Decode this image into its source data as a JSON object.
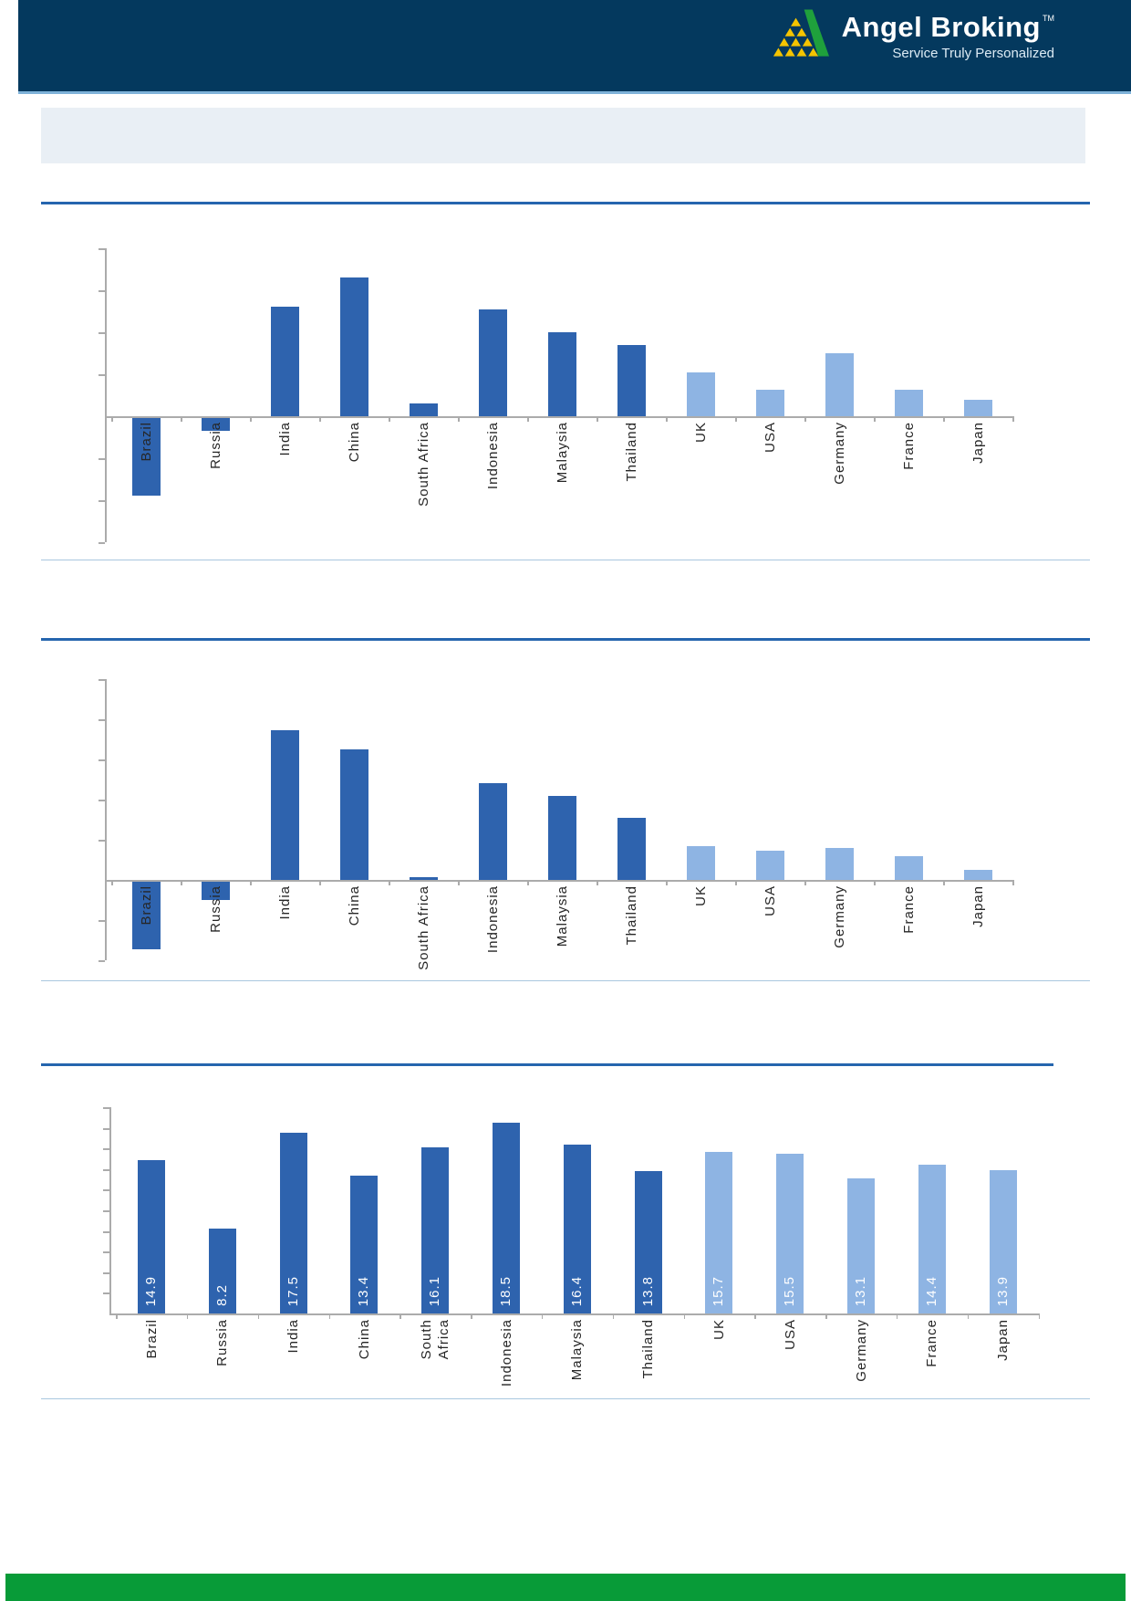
{
  "header": {
    "brand": "Angel Broking",
    "brand_tm": "TM",
    "tagline": "Service Truly Personalized"
  },
  "colors": {
    "header_bg": "#04395E",
    "header_underline": "#7FB2D9",
    "banner_bg": "#E9EFF5",
    "section_rule": "#2565AE",
    "chart_bottom_border": "#A9C7DF",
    "bar_dark": "#2E63AE",
    "bar_light": "#8EB4E3",
    "axis": "#ABABAB",
    "label_text": "#262626",
    "value_label_text": "#FFFFFF",
    "footer_bg": "#089B38"
  },
  "chart_data": [
    {
      "id": "chart1",
      "type": "bar",
      "title": "",
      "axis_note": "no axis value labels visible; values estimated in gridline units",
      "legend": "none",
      "grid": "off",
      "categories": [
        "Brazil",
        "Russia",
        "India",
        "China",
        "South Africa",
        "Indonesia",
        "Malaysia",
        "Thailand",
        "UK",
        "USA",
        "Germany",
        "France",
        "Japan"
      ],
      "values": [
        -1.85,
        -0.3,
        2.6,
        3.3,
        0.3,
        2.55,
        2.0,
        1.7,
        1.05,
        0.62,
        1.5,
        0.62,
        0.4
      ],
      "shade": [
        "dark",
        "dark",
        "dark",
        "dark",
        "dark",
        "dark",
        "dark",
        "dark",
        "light",
        "light",
        "light",
        "light",
        "light"
      ],
      "value_labels": null,
      "ylim_gridline_units": [
        -3,
        4
      ]
    },
    {
      "id": "chart2",
      "type": "bar",
      "title": "",
      "axis_note": "no axis value labels visible; values estimated in gridline units",
      "legend": "none",
      "grid": "off",
      "categories": [
        "Brazil",
        "Russia",
        "India",
        "China",
        "South Africa",
        "Indonesia",
        "Malaysia",
        "Thailand",
        "UK",
        "USA",
        "Germany",
        "France",
        "Japan"
      ],
      "values": [
        -1.68,
        -0.45,
        3.73,
        3.25,
        0.07,
        2.4,
        2.1,
        1.55,
        0.85,
        0.73,
        0.8,
        0.6,
        0.25
      ],
      "shade": [
        "dark",
        "dark",
        "dark",
        "dark",
        "dark",
        "dark",
        "dark",
        "dark",
        "light",
        "light",
        "light",
        "light",
        "light"
      ],
      "value_labels": null,
      "ylim_gridline_units": [
        -2,
        5
      ]
    },
    {
      "id": "chart3",
      "type": "bar",
      "title": "",
      "axis_note": "axis unlabeled; bars carry data labels",
      "legend": "none",
      "grid": "off",
      "categories": [
        "Brazil",
        "Russia",
        "India",
        "China",
        "South\nAfrica",
        "Indonesia",
        "Malaysia",
        "Thailand",
        "UK",
        "USA",
        "Germany",
        "France",
        "Japan"
      ],
      "values": [
        14.9,
        8.2,
        17.5,
        13.4,
        16.1,
        18.5,
        16.4,
        13.8,
        15.7,
        15.5,
        13.1,
        14.4,
        13.9
      ],
      "shade": [
        "dark",
        "dark",
        "dark",
        "dark",
        "dark",
        "dark",
        "dark",
        "dark",
        "light",
        "light",
        "light",
        "light",
        "light"
      ],
      "value_labels": [
        "14.9",
        "8.2",
        "17.5",
        "13.4",
        "16.1",
        "18.5",
        "16.4",
        "13.8",
        "15.7",
        "15.5",
        "13.1",
        "14.4",
        "13.9"
      ],
      "ylim": [
        0,
        20
      ]
    }
  ]
}
